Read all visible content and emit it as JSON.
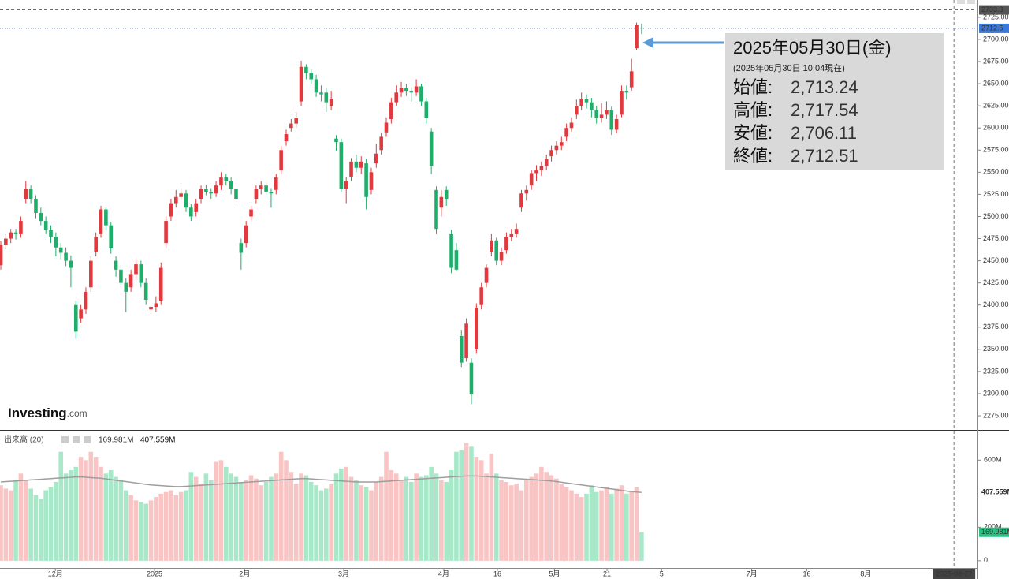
{
  "chart_data": [
    {
      "type": "candlestick",
      "ylim": [
        2259,
        2744.5
      ],
      "yticks": [
        {
          "value": 2275,
          "label": "2275.00"
        },
        {
          "value": 2300,
          "label": "2300.00"
        },
        {
          "value": 2325,
          "label": "2325.00"
        },
        {
          "value": 2350,
          "label": "2350.00"
        },
        {
          "value": 2375,
          "label": "2375.00"
        },
        {
          "value": 2400,
          "label": "2400.00"
        },
        {
          "value": 2425,
          "label": "2425.00"
        },
        {
          "value": 2450,
          "label": "2450.00"
        },
        {
          "value": 2475,
          "label": "2475.00"
        },
        {
          "value": 2500,
          "label": "2500.00"
        },
        {
          "value": 2525,
          "label": "2525.00"
        },
        {
          "value": 2550,
          "label": "2550.00"
        },
        {
          "value": 2575,
          "label": "2575.00"
        },
        {
          "value": 2600,
          "label": "2600.00"
        },
        {
          "value": 2625,
          "label": "2625.00"
        },
        {
          "value": 2650,
          "label": "2650.00"
        },
        {
          "value": 2675,
          "label": "2675.00"
        },
        {
          "value": 2700,
          "label": "2700.00"
        },
        {
          "value": 2725,
          "label": "2725.00"
        }
      ],
      "up_color": "#e0393e",
      "down_color": "#1eae6a",
      "markers": [
        {
          "value": 2733.3,
          "label": "2733.3",
          "color": "#555555"
        },
        {
          "value": 2712.5,
          "label": "2712.5",
          "color": "#3c78d8"
        }
      ],
      "candles": [
        [
          2445,
          2472,
          2440,
          2468
        ],
        [
          2468,
          2480,
          2463,
          2475
        ],
        [
          2475,
          2486,
          2470,
          2482
        ],
        [
          2482,
          2486,
          2474,
          2480
        ],
        [
          2480,
          2500,
          2476,
          2495
        ],
        [
          2520,
          2540,
          2515,
          2531
        ],
        [
          2531,
          2535,
          2515,
          2520
        ],
        [
          2520,
          2524,
          2498,
          2504
        ],
        [
          2504,
          2510,
          2490,
          2495
        ],
        [
          2495,
          2500,
          2480,
          2485
        ],
        [
          2485,
          2490,
          2470,
          2477
        ],
        [
          2477,
          2482,
          2455,
          2465
        ],
        [
          2465,
          2470,
          2452,
          2459
        ],
        [
          2459,
          2465,
          2444,
          2450
        ],
        [
          2450,
          2456,
          2420,
          2442
        ],
        [
          2400,
          2405,
          2362,
          2370
        ],
        [
          2385,
          2400,
          2380,
          2395
        ],
        [
          2395,
          2420,
          2390,
          2415
        ],
        [
          2420,
          2455,
          2415,
          2450
        ],
        [
          2460,
          2482,
          2455,
          2477
        ],
        [
          2480,
          2512,
          2476,
          2508
        ],
        [
          2508,
          2510,
          2485,
          2490
        ],
        [
          2490,
          2494,
          2458,
          2464
        ],
        [
          2450,
          2455,
          2432,
          2440
        ],
        [
          2440,
          2445,
          2420,
          2425
        ],
        [
          2425,
          2430,
          2392,
          2415
        ],
        [
          2420,
          2440,
          2415,
          2435
        ],
        [
          2435,
          2452,
          2430,
          2446
        ],
        [
          2446,
          2450,
          2420,
          2425
        ],
        [
          2425,
          2430,
          2400,
          2406
        ],
        [
          2395,
          2403,
          2390,
          2398
        ],
        [
          2398,
          2410,
          2392,
          2402
        ],
        [
          2405,
          2448,
          2400,
          2442
        ],
        [
          2470,
          2500,
          2465,
          2495
        ],
        [
          2500,
          2520,
          2495,
          2515
        ],
        [
          2515,
          2530,
          2510,
          2522
        ],
        [
          2522,
          2532,
          2518,
          2526
        ],
        [
          2526,
          2530,
          2505,
          2510
        ],
        [
          2510,
          2514,
          2495,
          2500
        ],
        [
          2505,
          2520,
          2500,
          2515
        ],
        [
          2520,
          2535,
          2515,
          2531
        ],
        [
          2531,
          2536,
          2524,
          2528
        ],
        [
          2528,
          2532,
          2520,
          2526
        ],
        [
          2526,
          2540,
          2522,
          2535
        ],
        [
          2535,
          2550,
          2530,
          2544
        ],
        [
          2544,
          2548,
          2535,
          2540
        ],
        [
          2540,
          2544,
          2525,
          2531
        ],
        [
          2531,
          2535,
          2515,
          2520
        ],
        [
          2470,
          2475,
          2440,
          2459
        ],
        [
          2470,
          2495,
          2465,
          2490
        ],
        [
          2500,
          2512,
          2496,
          2508
        ],
        [
          2520,
          2535,
          2515,
          2531
        ],
        [
          2531,
          2540,
          2525,
          2535
        ],
        [
          2535,
          2538,
          2522,
          2528
        ],
        [
          2528,
          2532,
          2510,
          2526
        ],
        [
          2530,
          2548,
          2525,
          2544
        ],
        [
          2552,
          2580,
          2548,
          2575
        ],
        [
          2585,
          2598,
          2580,
          2593
        ],
        [
          2600,
          2610,
          2596,
          2605
        ],
        [
          2605,
          2618,
          2600,
          2611
        ],
        [
          2630,
          2676,
          2625,
          2669
        ],
        [
          2669,
          2672,
          2655,
          2662
        ],
        [
          2662,
          2666,
          2650,
          2655
        ],
        [
          2655,
          2660,
          2635,
          2640
        ],
        [
          2640,
          2648,
          2630,
          2638
        ],
        [
          2640,
          2645,
          2618,
          2629
        ],
        [
          2625,
          2642,
          2620,
          2633
        ],
        [
          2588,
          2592,
          2574,
          2584
        ],
        [
          2584,
          2588,
          2528,
          2531
        ],
        [
          2531,
          2545,
          2515,
          2540
        ],
        [
          2545,
          2566,
          2540,
          2562
        ],
        [
          2562,
          2570,
          2550,
          2555
        ],
        [
          2555,
          2568,
          2548,
          2562
        ],
        [
          2560,
          2565,
          2508,
          2522
        ],
        [
          2530,
          2555,
          2525,
          2550
        ],
        [
          2560,
          2582,
          2555,
          2571
        ],
        [
          2575,
          2595,
          2570,
          2590
        ],
        [
          2595,
          2612,
          2590,
          2606
        ],
        [
          2610,
          2634,
          2605,
          2629
        ],
        [
          2629,
          2648,
          2625,
          2640
        ],
        [
          2640,
          2652,
          2635,
          2645
        ],
        [
          2645,
          2650,
          2636,
          2642
        ],
        [
          2642,
          2646,
          2630,
          2640
        ],
        [
          2640,
          2655,
          2636,
          2647
        ],
        [
          2647,
          2650,
          2625,
          2630
        ],
        [
          2630,
          2634,
          2605,
          2611
        ],
        [
          2596,
          2600,
          2548,
          2557
        ],
        [
          2530,
          2534,
          2480,
          2486
        ],
        [
          2510,
          2530,
          2500,
          2522
        ],
        [
          2530,
          2534,
          2512,
          2520
        ],
        [
          2480,
          2485,
          2436,
          2442
        ],
        [
          2462,
          2470,
          2438,
          2440
        ],
        [
          2365,
          2372,
          2330,
          2335
        ],
        [
          2340,
          2385,
          2336,
          2379
        ],
        [
          2335,
          2340,
          2288,
          2299
        ],
        [
          2350,
          2402,
          2345,
          2397
        ],
        [
          2400,
          2425,
          2395,
          2420
        ],
        [
          2425,
          2446,
          2420,
          2442
        ],
        [
          2460,
          2480,
          2455,
          2473
        ],
        [
          2473,
          2476,
          2445,
          2450
        ],
        [
          2450,
          2465,
          2445,
          2460
        ],
        [
          2462,
          2482,
          2458,
          2477
        ],
        [
          2477,
          2486,
          2472,
          2480
        ],
        [
          2480,
          2492,
          2476,
          2486
        ],
        [
          2510,
          2530,
          2505,
          2526
        ],
        [
          2526,
          2535,
          2518,
          2530
        ],
        [
          2535,
          2552,
          2530,
          2549
        ],
        [
          2549,
          2558,
          2540,
          2552
        ],
        [
          2552,
          2562,
          2546,
          2557
        ],
        [
          2557,
          2570,
          2552,
          2565
        ],
        [
          2568,
          2580,
          2562,
          2575
        ],
        [
          2575,
          2585,
          2570,
          2580
        ],
        [
          2580,
          2590,
          2575,
          2584
        ],
        [
          2590,
          2605,
          2585,
          2600
        ],
        [
          2600,
          2612,
          2596,
          2606
        ],
        [
          2615,
          2632,
          2610,
          2625
        ],
        [
          2625,
          2640,
          2620,
          2633
        ],
        [
          2633,
          2638,
          2622,
          2629
        ],
        [
          2629,
          2634,
          2612,
          2620
        ],
        [
          2620,
          2625,
          2605,
          2611
        ],
        [
          2611,
          2628,
          2606,
          2615
        ],
        [
          2615,
          2630,
          2610,
          2620
        ],
        [
          2620,
          2624,
          2592,
          2598
        ],
        [
          2598,
          2615,
          2594,
          2610
        ],
        [
          2615,
          2648,
          2612,
          2642
        ],
        [
          2642,
          2648,
          2632,
          2640
        ],
        [
          2646,
          2678,
          2642,
          2664
        ],
        [
          2690,
          2719,
          2688,
          2716
        ],
        [
          2713.24,
          2717.54,
          2706.11,
          2712.51
        ]
      ]
    },
    {
      "type": "volume",
      "title": "出来高 (20)",
      "ylim": [
        -43,
        771
      ],
      "yticks": [
        {
          "value": 0,
          "label": "0"
        },
        {
          "value": 200,
          "label": "200M"
        },
        {
          "value": 600,
          "label": "600M"
        }
      ],
      "up_color": "#f9c4c4",
      "down_color": "#a6e8c8",
      "ma_color": "#9e9e9e",
      "value_label": "169.981M",
      "value_label_color": "#26c281",
      "ma_value_label": "407.559M",
      "values": [
        450,
        430,
        420,
        480,
        520,
        480,
        430,
        390,
        370,
        420,
        440,
        470,
        650,
        520,
        540,
        560,
        620,
        600,
        650,
        620,
        560,
        520,
        540,
        500,
        480,
        420,
        390,
        360,
        350,
        340,
        360,
        380,
        400,
        410,
        420,
        390,
        410,
        420,
        530,
        500,
        460,
        520,
        480,
        590,
        600,
        560,
        520,
        500,
        470,
        480,
        510,
        490,
        450,
        470,
        500,
        520,
        650,
        600,
        530,
        460,
        520,
        510,
        470,
        450,
        420,
        430,
        460,
        520,
        550,
        560,
        500,
        480,
        450,
        440,
        420,
        470,
        500,
        650,
        540,
        520,
        480,
        500,
        470,
        520,
        500,
        510,
        560,
        520,
        480,
        470,
        540,
        650,
        660,
        700,
        680,
        620,
        600,
        520,
        640,
        520,
        480,
        470,
        450,
        460,
        420,
        490,
        500,
        520,
        560,
        530,
        510,
        490,
        460,
        440,
        420,
        400,
        380,
        400,
        450,
        410,
        420,
        440,
        400,
        430,
        450,
        400,
        410,
        440,
        169.981
      ],
      "ma_values": [
        470,
        472,
        474,
        476,
        478,
        480,
        482,
        484,
        486,
        488,
        490,
        492,
        494,
        496,
        498,
        500,
        500,
        498,
        496,
        494,
        492,
        488,
        484,
        480,
        476,
        472,
        468,
        464,
        460,
        456,
        452,
        450,
        448,
        446,
        444,
        442,
        442,
        444,
        446,
        448,
        450,
        452,
        454,
        456,
        458,
        460,
        462,
        464,
        466,
        468,
        470,
        472,
        474,
        476,
        478,
        480,
        482,
        484,
        486,
        488,
        490,
        490,
        488,
        486,
        484,
        482,
        480,
        478,
        476,
        474,
        472,
        470,
        470,
        470,
        470,
        470,
        472,
        474,
        476,
        478,
        480,
        482,
        484,
        486,
        488,
        490,
        492,
        494,
        496,
        498,
        500,
        502,
        504,
        506,
        506,
        506,
        504,
        502,
        500,
        498,
        496,
        494,
        492,
        490,
        488,
        486,
        484,
        482,
        480,
        478,
        476,
        472,
        468,
        464,
        460,
        456,
        452,
        448,
        444,
        440,
        436,
        432,
        428,
        424,
        420,
        416,
        412,
        410,
        407.559
      ],
      "xlim": [
        -0.16,
        195.1
      ],
      "xticks": [
        {
          "value": 10.9,
          "label": "12月"
        },
        {
          "value": 30.7,
          "label": "2025"
        },
        {
          "value": 48.7,
          "label": "2月"
        },
        {
          "value": 68.5,
          "label": "3月"
        },
        {
          "value": 88.5,
          "label": "4月"
        },
        {
          "value": 99.2,
          "label": "16"
        },
        {
          "value": 110.6,
          "label": "5月"
        },
        {
          "value": 121.1,
          "label": "21"
        },
        {
          "value": 132,
          "label": "5"
        },
        {
          "value": 150,
          "label": "7月"
        },
        {
          "value": 161,
          "label": "16"
        },
        {
          "value": 172.8,
          "label": "8月"
        }
      ],
      "crosshair": {
        "value": 190.4,
        "label": "2025-08-27"
      }
    }
  ],
  "logo": {
    "name": "Investing",
    "suffix": ".com"
  },
  "tooltip": {
    "title": "2025年05月30日(金)",
    "subtitle": "(2025年05月30日 10:04現在)",
    "rows": [
      {
        "label": "始値:",
        "value": "2,713.24",
        "color": "#222222"
      },
      {
        "label": "高値:",
        "value": "2,717.54",
        "color": "#d0021b"
      },
      {
        "label": "安値:",
        "value": "2,706.11",
        "color": "#222222"
      },
      {
        "label": "終値:",
        "value": "2,712.51",
        "color": "#d0021b"
      }
    ]
  }
}
